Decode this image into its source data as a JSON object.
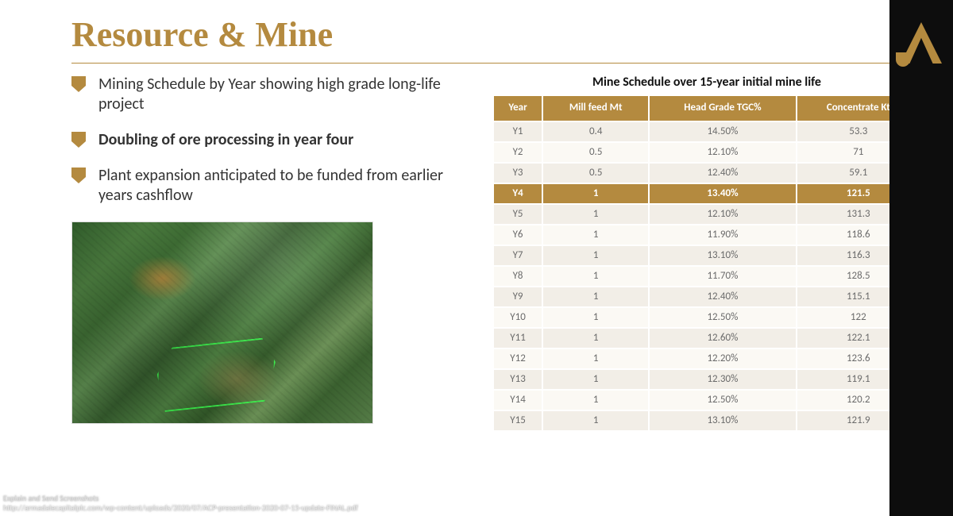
{
  "colors": {
    "accent": "#b48a3f",
    "corner_bg": "#0d0d0d",
    "text": "#333333",
    "table_text": "#6b6b6b",
    "row_odd_bg": "#f2eee7",
    "row_even_bg": "#fbf9f4",
    "white": "#ffffff"
  },
  "title": "Resource & Mine",
  "bullets": [
    {
      "text": "Mining Schedule by Year showing high grade long-life project",
      "bold": false
    },
    {
      "text": "Doubling of ore processing in year four",
      "bold": true
    },
    {
      "text": "Plant expansion anticipated to be funded from earlier years cashflow",
      "bold": false
    }
  ],
  "terrain_image": {
    "description": "3D aerial terrain render of mine site with green vegetation, brown terraced pit in upper-left, and green hexagonal tailings outline lower-centre",
    "outline_color": "#3bff4f"
  },
  "table": {
    "title": "Mine Schedule over 15-year initial mine life",
    "title_fontsize": 16,
    "header_bg": "#b48a3f",
    "header_color": "#ffffff",
    "highlight_row_index": 3,
    "columns": [
      "Year",
      "Mill feed Mt",
      "Head Grade TGC%",
      "Concentrate Kt"
    ],
    "rows": [
      [
        "Y1",
        "0.4",
        "14.50%",
        "53.3"
      ],
      [
        "Y2",
        "0.5",
        "12.10%",
        "71"
      ],
      [
        "Y3",
        "0.5",
        "12.40%",
        "59.1"
      ],
      [
        "Y4",
        "1",
        "13.40%",
        "121.5"
      ],
      [
        "Y5",
        "1",
        "12.10%",
        "131.3"
      ],
      [
        "Y6",
        "1",
        "11.90%",
        "118.6"
      ],
      [
        "Y7",
        "1",
        "13.10%",
        "116.3"
      ],
      [
        "Y8",
        "1",
        "11.70%",
        "128.5"
      ],
      [
        "Y9",
        "1",
        "12.40%",
        "115.1"
      ],
      [
        "Y10",
        "1",
        "12.50%",
        "122"
      ],
      [
        "Y11",
        "1",
        "12.60%",
        "122.1"
      ],
      [
        "Y12",
        "1",
        "12.20%",
        "123.6"
      ],
      [
        "Y13",
        "1",
        "12.30%",
        "119.1"
      ],
      [
        "Y14",
        "1",
        "12.50%",
        "120.2"
      ],
      [
        "Y15",
        "1",
        "13.10%",
        "121.9"
      ]
    ]
  },
  "footer": {
    "line1": "Explain and Send Screenshots",
    "line2": "http://armadalecapitalplc.com/wp-content/uploads/2020/07/ACP-presentation-2020-07-15-update-FINAL.pdf"
  }
}
